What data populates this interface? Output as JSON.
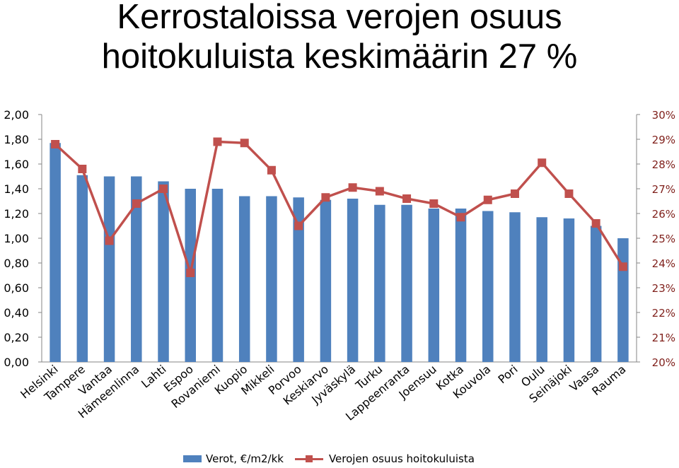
{
  "title_lines": [
    "Kerrostaloissa verojen osuus",
    "hoitokuluista keskimäärin 27 %"
  ],
  "colors": {
    "bars": "#4f81bd",
    "line": "#c0504d",
    "right_axis_text": "#7f1f1a"
  },
  "chart_data": {
    "type": "bar",
    "combo": "bar-line dual-axis",
    "title": "Kerrostaloissa verojen osuus hoitokuluista keskimäärin 27 %",
    "categories": [
      "Helsinki",
      "Tampere",
      "Vantaa",
      "Hämeenlinna",
      "Lahti",
      "Espoo",
      "Rovaniemi",
      "Kuopio",
      "Mikkeli",
      "Porvoo",
      "Keskiarvo",
      "Jyväskylä",
      "Turku",
      "Lappeenranta",
      "Joensuu",
      "Kotka",
      "Kouvola",
      "Pori",
      "Oulu",
      "Seinäjoki",
      "Vaasa",
      "Rauma"
    ],
    "series": [
      {
        "name": "Verot, €/m2/kk",
        "type": "bar",
        "axis": "left",
        "values": [
          1.77,
          1.51,
          1.5,
          1.5,
          1.46,
          1.4,
          1.4,
          1.34,
          1.34,
          1.33,
          1.31,
          1.32,
          1.27,
          1.27,
          1.24,
          1.24,
          1.22,
          1.21,
          1.17,
          1.16,
          1.1,
          1.0
        ]
      },
      {
        "name": "Verojen osuus hoitokuluista",
        "type": "line",
        "axis": "right",
        "unit": "%",
        "values": [
          28.8,
          27.8,
          24.9,
          26.4,
          27.0,
          23.6,
          28.9,
          28.85,
          27.75,
          25.5,
          26.65,
          27.05,
          26.9,
          26.6,
          26.4,
          25.85,
          26.55,
          26.8,
          28.05,
          26.8,
          25.6,
          23.85
        ]
      }
    ],
    "y_left": {
      "ylim": [
        0,
        2.0
      ],
      "ticks": [
        "0,00",
        "0,20",
        "0,40",
        "0,60",
        "0,80",
        "1,00",
        "1,20",
        "1,40",
        "1,60",
        "1,80",
        "2,00"
      ]
    },
    "y_right": {
      "ylim": [
        20,
        30
      ],
      "ticks": [
        "20%",
        "21%",
        "22%",
        "23%",
        "24%",
        "25%",
        "26%",
        "27%",
        "28%",
        "29%",
        "30%"
      ]
    },
    "grid": false,
    "legend": "bottom"
  }
}
